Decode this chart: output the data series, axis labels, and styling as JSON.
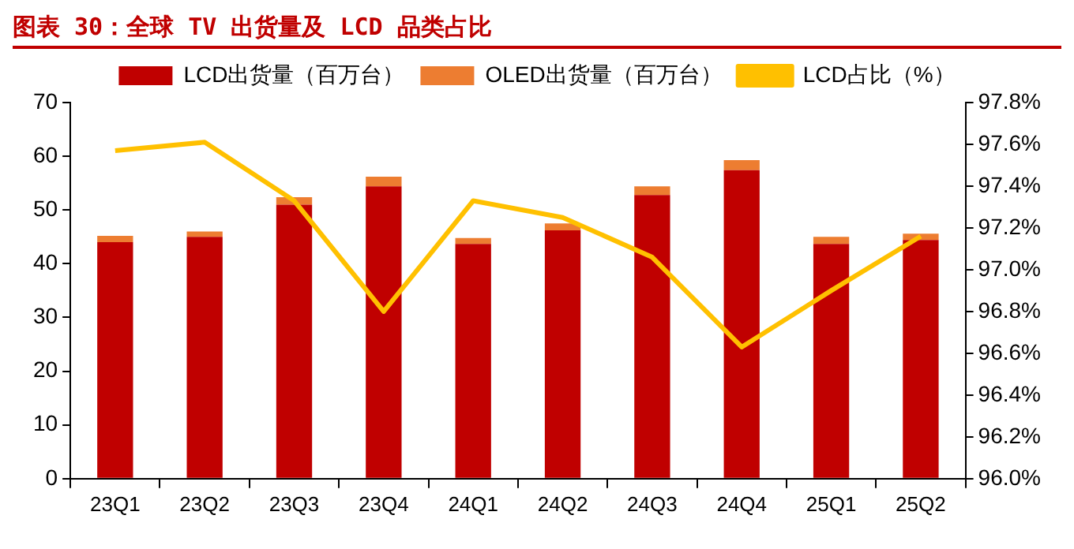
{
  "chart_data": {
    "type": "bar",
    "title": "图表 30：全球 TV 出货量及 LCD 品类占比",
    "categories": [
      "23Q1",
      "23Q2",
      "23Q3",
      "23Q4",
      "24Q1",
      "24Q2",
      "24Q3",
      "24Q4",
      "25Q1",
      "25Q2"
    ],
    "stacked": true,
    "series": [
      {
        "name": "LCD出货量（百万台）",
        "color": "#c00000",
        "values": [
          44.0,
          45.0,
          51.0,
          54.4,
          43.7,
          46.2,
          52.8,
          57.4,
          43.7,
          44.4
        ]
      },
      {
        "name": "OLED出货量（百万台）",
        "color": "#ed7d31",
        "values": [
          1.2,
          1.0,
          1.4,
          1.8,
          1.1,
          1.3,
          1.6,
          1.9,
          1.3,
          1.2
        ]
      },
      {
        "name": "LCD占比（%）",
        "type": "line",
        "axis": "y2",
        "color": "#ffc000",
        "values": [
          97.57,
          97.61,
          97.33,
          96.8,
          97.33,
          97.25,
          97.06,
          96.63,
          96.9,
          97.16
        ]
      }
    ],
    "ylim": [
      0,
      70
    ],
    "yticks": [
      0,
      10,
      20,
      30,
      40,
      50,
      60,
      70
    ],
    "y2lim": [
      96.0,
      97.8
    ],
    "y2ticks": [
      {
        "value": 96.0,
        "label": "96.0%"
      },
      {
        "value": 96.2,
        "label": "96.2%"
      },
      {
        "value": 96.4,
        "label": "96.4%"
      },
      {
        "value": 96.6,
        "label": "96.6%"
      },
      {
        "value": 96.8,
        "label": "96.8%"
      },
      {
        "value": 97.0,
        "label": "97.0%"
      },
      {
        "value": 97.2,
        "label": "97.2%"
      },
      {
        "value": 97.4,
        "label": "97.4%"
      },
      {
        "value": 97.6,
        "label": "97.6%"
      },
      {
        "value": 97.8,
        "label": "97.8%"
      }
    ],
    "grid": false,
    "legend": "top",
    "marker": "none"
  }
}
